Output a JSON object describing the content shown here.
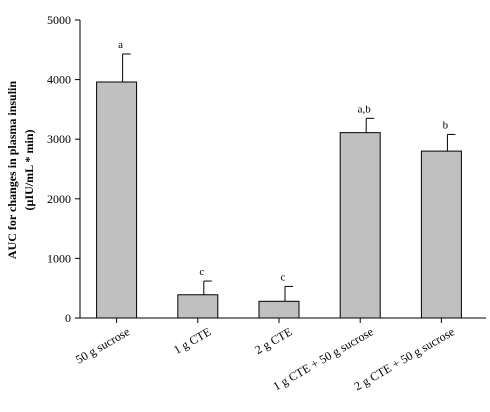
{
  "chart_data": {
    "type": "bar",
    "title": "",
    "xlabel": "",
    "ylabel_line1": "AUC for changes in plasma insulin",
    "ylabel_line2": "(µIU/mL * min)",
    "ylim": [
      0,
      5000
    ],
    "yticks": [
      0,
      1000,
      2000,
      3000,
      4000,
      5000
    ],
    "categories": [
      "50 g sucrose",
      "1 g CTE",
      "2 g CTE",
      "1 g CTE + 50 g sucrose",
      "2 g CTE + 50 g sucrose"
    ],
    "values": [
      3960,
      390,
      280,
      3110,
      2800
    ],
    "errors": [
      470,
      230,
      250,
      240,
      280
    ],
    "significance": [
      "a",
      "c",
      "c",
      "a,b",
      "b"
    ],
    "bar_color": "#c0c0c0",
    "grid": false,
    "legend": "none"
  }
}
